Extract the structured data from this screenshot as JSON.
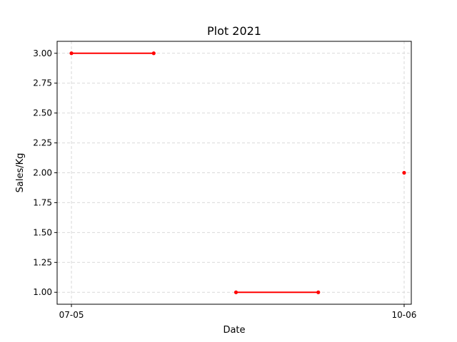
{
  "chart_data": {
    "type": "line",
    "title": "Plot 2021",
    "xlabel": "Date",
    "ylabel": "Sales/Kg",
    "grid": true,
    "x_tick_labels": [
      "07-05",
      "10-06"
    ],
    "y_tick_labels": [
      "1.00",
      "1.25",
      "1.50",
      "1.75",
      "2.00",
      "2.25",
      "2.50",
      "2.75",
      "3.00"
    ],
    "y_ticks": [
      1.0,
      1.25,
      1.5,
      1.75,
      2.0,
      2.25,
      2.5,
      2.75,
      3.0
    ],
    "ylim": [
      0.9,
      3.1
    ],
    "xlim": [
      "07-01",
      "10-08"
    ],
    "series": [
      {
        "color": "#ff0000",
        "segments": [
          [
            {
              "x": "07-05",
              "y": 3.0
            },
            {
              "x": "07-28",
              "y": 3.0
            }
          ],
          [
            {
              "x": "08-20",
              "y": 1.0
            },
            {
              "x": "09-12",
              "y": 1.0
            }
          ],
          [
            {
              "x": "10-06",
              "y": 2.0
            }
          ]
        ]
      }
    ]
  }
}
